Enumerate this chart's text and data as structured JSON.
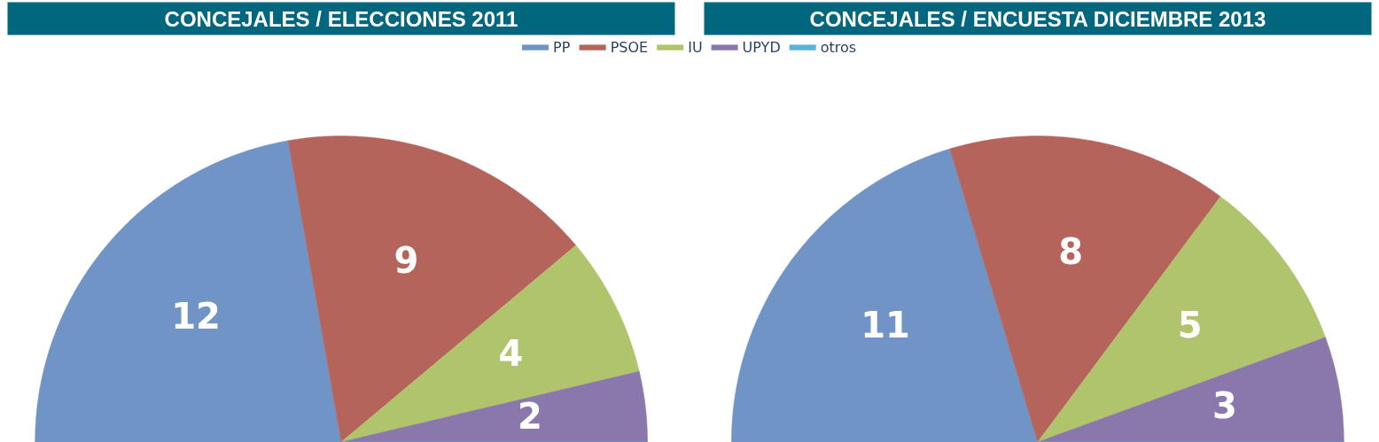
{
  "chart_data": [
    {
      "type": "pie",
      "title": "CONCEJALES / ELECCIONES 2011",
      "categories": [
        "PP",
        "PSOE",
        "IU",
        "UPYD",
        "otros"
      ],
      "values": [
        12,
        9,
        4,
        2,
        0
      ],
      "colors": [
        "#7094c6",
        "#b5645c",
        "#b0c46c",
        "#8a78ad",
        "#5bb4d8"
      ],
      "data_labels": true,
      "legend": "top right"
    },
    {
      "type": "pie",
      "title": "CONCEJALES / ENCUESTA DICIEMBRE 2013",
      "categories": [
        null,
        null,
        null,
        null,
        null
      ],
      "values": [
        11,
        8,
        5,
        3,
        0
      ],
      "colors": [
        "#7094c6",
        "#b5645c",
        "#b0c46c",
        "#8a78ad",
        "#5bb4d8"
      ],
      "data_labels": true
    }
  ]
}
